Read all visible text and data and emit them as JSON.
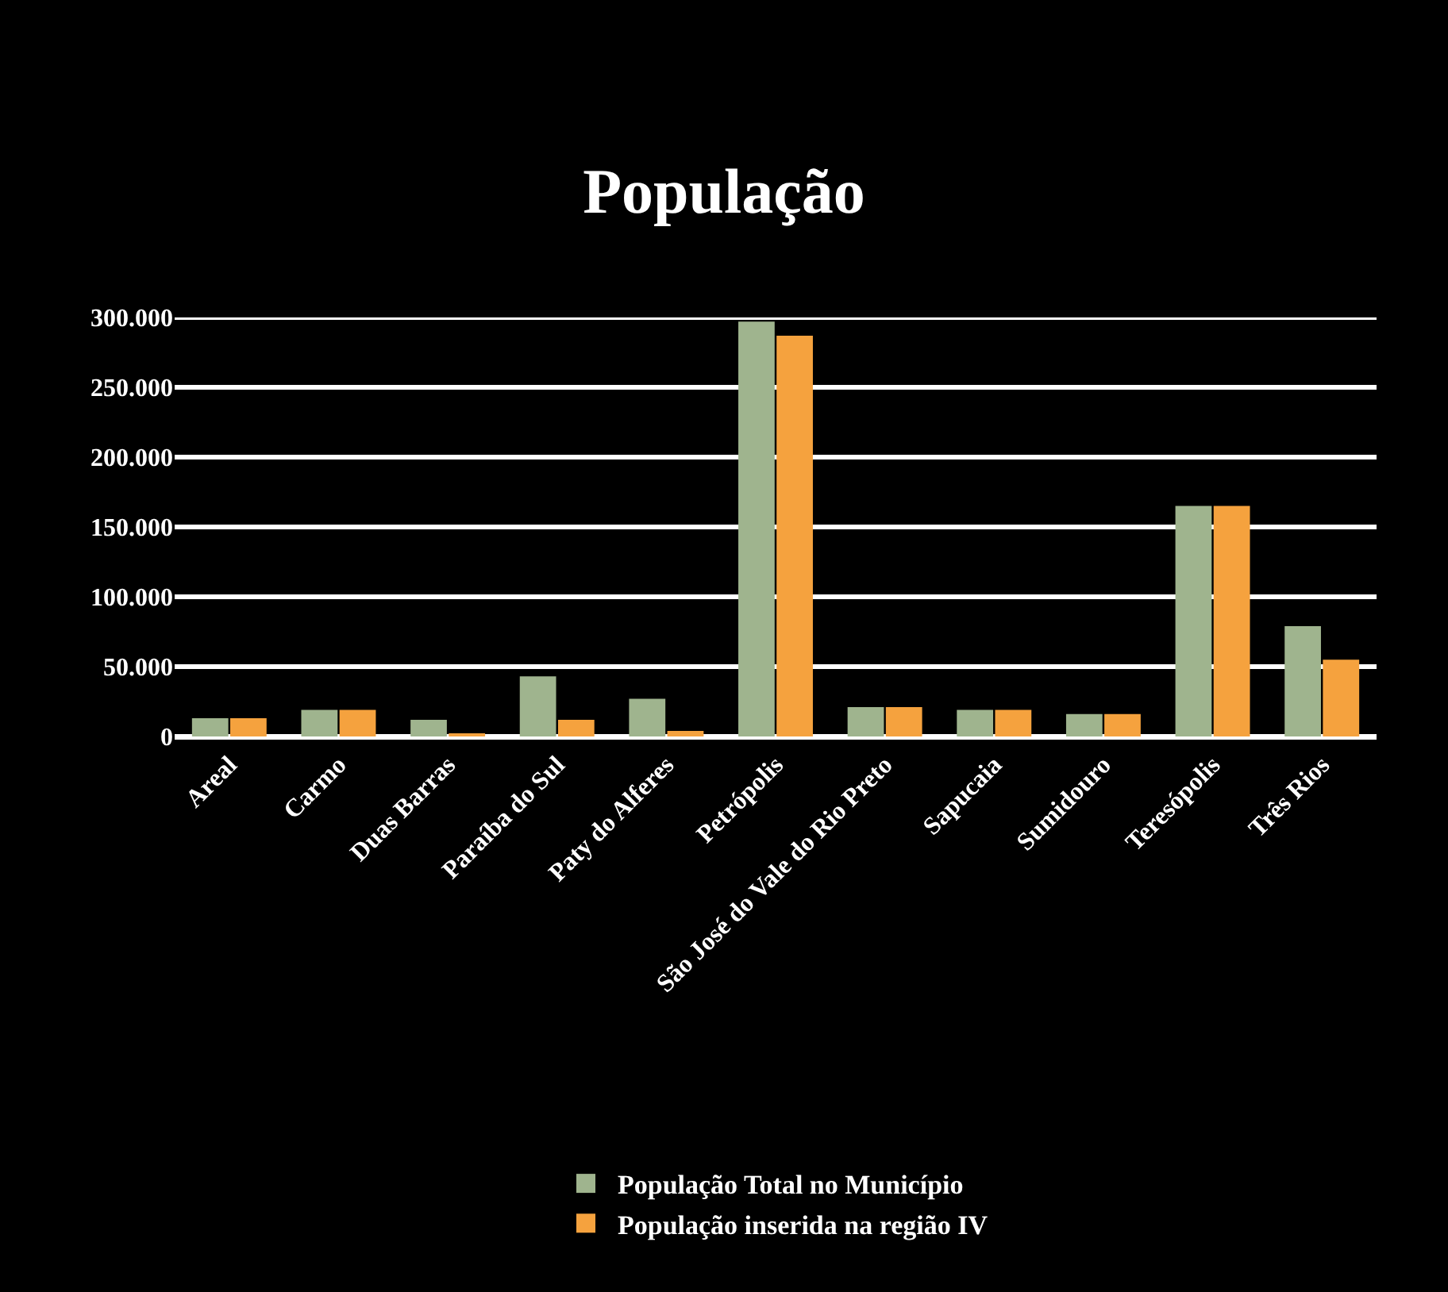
{
  "chart_data": {
    "type": "bar",
    "title": "População",
    "categories": [
      "Areal",
      "Carmo",
      "Duas Barras",
      "Paraíba do Sul",
      "Paty do Alferes",
      "Petrópolis",
      "São José do Vale do Rio Preto",
      "Sapucaia",
      "Sumidouro",
      "Teresópolis",
      "Três Rios"
    ],
    "series": [
      {
        "name": "População Total no Município",
        "color": "#9fb48e",
        "values": [
          13000,
          19000,
          12000,
          43000,
          27000,
          297000,
          21000,
          19000,
          16000,
          165000,
          79000
        ]
      },
      {
        "name": "População inserida na região IV",
        "color": "#f5a23e",
        "values": [
          13000,
          19000,
          2000,
          12000,
          4000,
          287000,
          21000,
          19000,
          16000,
          165000,
          55000
        ]
      }
    ],
    "ylim": [
      0,
      300000
    ],
    "yticks": [
      {
        "value": 0,
        "label": "0"
      },
      {
        "value": 50000,
        "label": "50.000"
      },
      {
        "value": 100000,
        "label": "100.000"
      },
      {
        "value": 150000,
        "label": "150.000"
      },
      {
        "value": 200000,
        "label": "200.000"
      },
      {
        "value": 250000,
        "label": "250.000"
      },
      {
        "value": 300000,
        "label": "300.000"
      }
    ],
    "grid": "y",
    "legend": "bottom"
  }
}
